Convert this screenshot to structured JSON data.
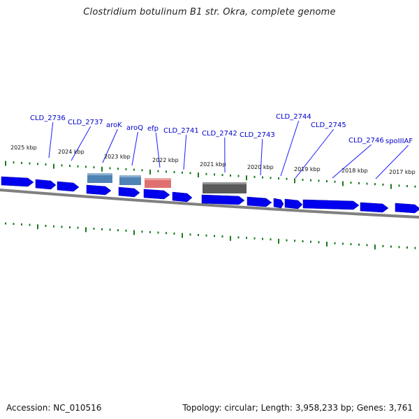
{
  "title": "Clostridium botulinum B1 str. Okra, complete genome",
  "footer": {
    "accession": "Accession: NC_010516",
    "stats": "Topology: circular; Length: 3,958,233 bp; Genes: 3,761"
  },
  "colors": {
    "gene": "#0000ee",
    "gene_light": "#4a5cff",
    "label": "#0000cc",
    "leader": "#1a1aff",
    "tick": "#1a7a1a",
    "backbone": "#808080",
    "aro": "#4f83b5",
    "efp": "#e07070",
    "cld2742": "#5a5a5a"
  },
  "gene_labels": [
    "CLD_2736",
    "CLD_2737",
    "aroK",
    "aroQ",
    "efp",
    "CLD_2741",
    "CLD_2742",
    "CLD_2743",
    "CLD_2744",
    "CLD_2745",
    "CLD_2746",
    "spoIIIAF"
  ],
  "kbp_labels": [
    "2025 kbp",
    "2024 kbp",
    "2023 kbp",
    "2022 kbp",
    "2021 kbp",
    "2020 kbp",
    "2019 kbp",
    "2018 kbp",
    "2017 kbp"
  ]
}
